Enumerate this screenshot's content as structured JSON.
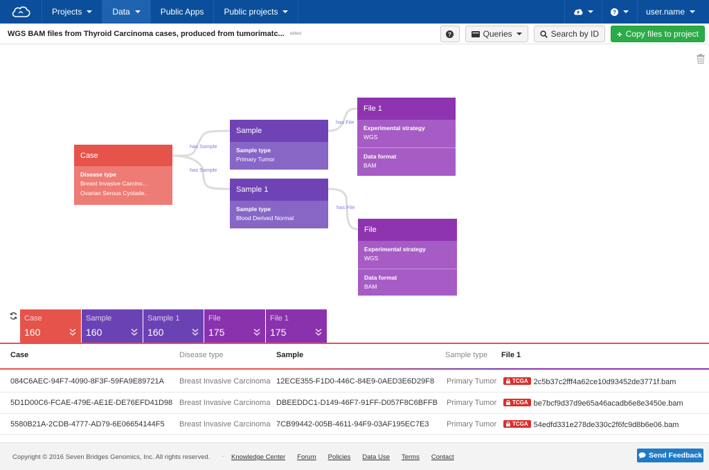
{
  "navbar": {
    "items": [
      {
        "label": "Projects",
        "caret": true
      },
      {
        "label": "Data",
        "caret": true,
        "active": true
      },
      {
        "label": "Public Apps",
        "caret": false
      },
      {
        "label": "Public projects",
        "caret": true
      }
    ],
    "user": "user.name",
    "icons": [
      "cloud-upload-icon",
      "help-icon"
    ]
  },
  "header": {
    "title": "WGS BAM files from Thyroid Carcinoma cases, produced from tumorimatc...",
    "edited": "edited",
    "help_label": "?",
    "queries_label": "Queries",
    "search_label": "Search by ID",
    "copy_label": "Copy files to project"
  },
  "graph": {
    "edges": [
      "has Sample",
      "has Sample",
      "has File",
      "has File"
    ],
    "nodes": {
      "case": {
        "title": "Case",
        "field": "Disease type",
        "values": [
          "Breast Invasive Carcino...",
          "Ovarian Serous Cystade.."
        ],
        "color": "#e5534b"
      },
      "sample": {
        "title": "Sample",
        "field": "Sample type",
        "values": [
          "Primary Tumor"
        ],
        "color": "#6f43b6"
      },
      "sample1": {
        "title": "Sample 1",
        "field": "Sample type",
        "values": [
          "Blood Derived Normal"
        ],
        "color": "#6f43b6"
      },
      "file1": {
        "title": "File 1",
        "fields": [
          {
            "k": "Experimental strategy",
            "v": "WGS"
          },
          {
            "k": "Data format",
            "v": "BAM"
          }
        ],
        "color": "#8e34b0"
      },
      "file": {
        "title": "File",
        "fields": [
          {
            "k": "Experimental strategy",
            "v": "WGS"
          },
          {
            "k": "Data format",
            "v": "BAM"
          }
        ],
        "color": "#8e34b0"
      }
    }
  },
  "summary": [
    {
      "label": "Case",
      "value": "160",
      "color": "#e5534b"
    },
    {
      "label": "Sample",
      "value": "160",
      "color": "#6b42b4"
    },
    {
      "label": "Sample 1",
      "value": "160",
      "color": "#6b42b4"
    },
    {
      "label": "File",
      "value": "175",
      "color": "#8a32ad"
    },
    {
      "label": "File 1",
      "value": "175",
      "color": "#8a32ad"
    }
  ],
  "table": {
    "headers": [
      "Case",
      "Disease type",
      "Sample",
      "Sample type",
      "File 1"
    ],
    "badge": "TCGA",
    "rows": [
      {
        "case": "084C6AEC-94F7-4090-8F3F-59FA9E89721A",
        "disease": "Breast Invasive Carcinoma",
        "sample": "12ECE355-F1D0-446C-84E9-0AED3E6D29F8",
        "sample_type": "Primary Tumor",
        "file": "2c5b37c2fff4a62ce10d93452de3771f.bam"
      },
      {
        "case": "5D1D00C6-FCAE-479E-AE1E-DE76EFD41D98",
        "disease": "Breast Invasive Carcinoma",
        "sample": "DBEEDDC1-D149-46F7-91FF-D057F8C6BFFB",
        "sample_type": "Primary Tumor",
        "file": "be7bcf9d37d9e65a46acadb6e8e3450e.bam"
      },
      {
        "case": "5580B21A-2CDB-4777-AD79-6E06654144F5",
        "disease": "Breast Invasive Carcinoma",
        "sample": "7CB99442-005B-4611-94F9-03AF195EC7E3",
        "sample_type": "Primary Tumor",
        "file": "54edfd331e278de330c2f6fc9d8b6e06.bam"
      }
    ]
  },
  "footer": {
    "copyright": "Copyright © 2016 Seven Bridges Genomics, Inc. All rights reserved.",
    "links": [
      "Knowledge Center",
      "Forum",
      "Policies",
      "Data Use",
      "Terms",
      "Contact"
    ],
    "feedback": "Send Feedback"
  }
}
